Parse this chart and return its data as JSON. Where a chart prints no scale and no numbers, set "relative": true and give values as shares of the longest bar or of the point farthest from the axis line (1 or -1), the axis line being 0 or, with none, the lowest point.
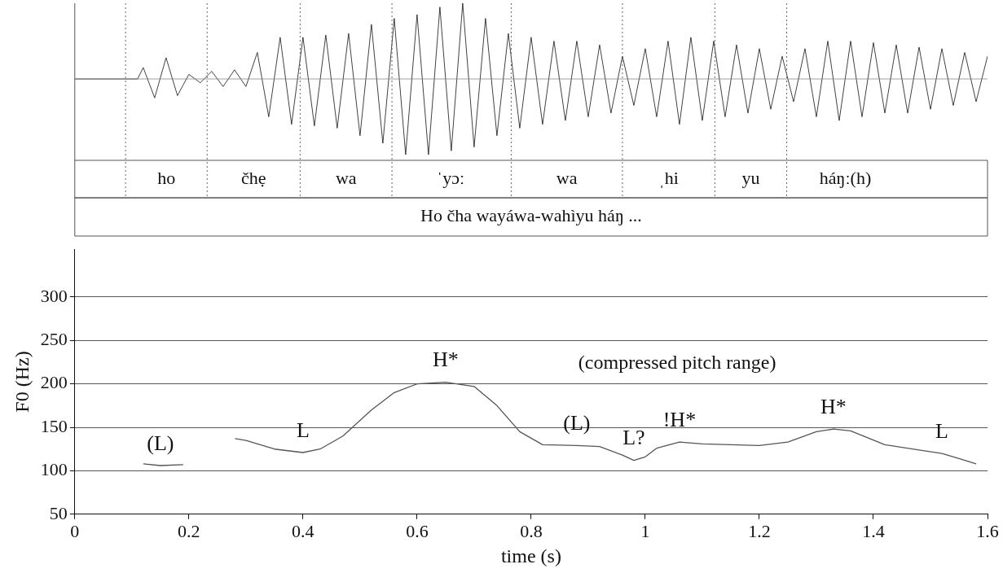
{
  "chart_data": [
    {
      "type": "line",
      "relative": true,
      "tick_labels": false,
      "legend": false,
      "marker": "none",
      "xlim": [
        0,
        1.6
      ],
      "x": [
        0,
        0.11,
        0.12,
        0.14,
        0.16,
        0.18,
        0.2,
        0.22,
        0.24,
        0.26,
        0.28,
        0.3,
        0.32,
        0.34,
        0.36,
        0.38,
        0.4,
        0.42,
        0.44,
        0.46,
        0.48,
        0.5,
        0.52,
        0.54,
        0.56,
        0.58,
        0.6,
        0.62,
        0.64,
        0.66,
        0.68,
        0.7,
        0.72,
        0.74,
        0.76,
        0.78,
        0.8,
        0.82,
        0.84,
        0.86,
        0.88,
        0.9,
        0.92,
        0.94,
        0.96,
        0.98,
        1.0,
        1.02,
        1.04,
        1.06,
        1.08,
        1.1,
        1.12,
        1.14,
        1.16,
        1.18,
        1.2,
        1.22,
        1.24,
        1.26,
        1.28,
        1.3,
        1.32,
        1.34,
        1.36,
        1.38,
        1.4,
        1.42,
        1.44,
        1.46,
        1.48,
        1.5,
        1.52,
        1.54,
        1.56,
        1.58,
        1.6
      ],
      "series": [
        {
          "color": "#111111",
          "values": [
            0,
            0,
            0.15,
            -0.25,
            0.28,
            -0.22,
            0.06,
            -0.05,
            0.1,
            -0.1,
            0.12,
            -0.1,
            0.35,
            -0.5,
            0.55,
            -0.6,
            0.55,
            -0.62,
            0.58,
            -0.65,
            0.6,
            -0.75,
            0.72,
            -0.85,
            0.8,
            -1,
            0.85,
            -1,
            0.95,
            -0.95,
            1,
            -0.9,
            0.8,
            -0.75,
            0.6,
            -0.65,
            0.55,
            -0.6,
            0.5,
            -0.55,
            0.5,
            -0.5,
            0.45,
            -0.45,
            0.3,
            -0.35,
            0.4,
            -0.5,
            0.5,
            -0.6,
            0.55,
            -0.55,
            0.5,
            -0.5,
            0.45,
            -0.45,
            0.4,
            -0.4,
            0.3,
            -0.3,
            0.4,
            -0.5,
            0.5,
            -0.55,
            0.5,
            -0.5,
            0.48,
            -0.45,
            0.45,
            -0.45,
            0.42,
            -0.4,
            0.4,
            -0.35,
            0.35,
            -0.3,
            0.3
          ]
        }
      ],
      "ref_lines": [
        {
          "axis": "x",
          "value": 0.089,
          "label": "ho",
          "line_style": "dotted",
          "color": "#666666"
        },
        {
          "axis": "x",
          "value": 0.232,
          "label": "čhẹ",
          "line_style": "dotted",
          "color": "#666666"
        },
        {
          "axis": "x",
          "value": 0.395,
          "label": "wa",
          "line_style": "dotted",
          "color": "#666666"
        },
        {
          "axis": "x",
          "value": 0.556,
          "label": "ˈyɔː",
          "line_style": "dotted",
          "color": "#666666"
        },
        {
          "axis": "x",
          "value": 0.765,
          "label": "wa",
          "line_style": "dotted",
          "color": "#666666"
        },
        {
          "axis": "x",
          "value": 0.96,
          "label": "ˌhi",
          "line_style": "dotted",
          "color": "#666666"
        },
        {
          "axis": "x",
          "value": 1.122,
          "label": "yu",
          "line_style": "dotted",
          "color": "#666666"
        },
        {
          "axis": "x",
          "value": 1.248,
          "label": "háŋː(h)",
          "line_style": "dotted",
          "color": "#666666"
        }
      ],
      "annotations": [
        "Ho čha wayáwa-wahìyu háŋ ..."
      ]
    },
    {
      "type": "line",
      "xlabel": "time (s)",
      "ylabel": "F0 (Hz)",
      "series": [
        {
          "color": "#555555",
          "x": [
            0.12,
            0.15,
            0.19
          ],
          "values": [
            108,
            106,
            107
          ]
        },
        {
          "color": "#555555",
          "x": [
            0.281,
            0.3,
            0.35,
            0.4,
            0.43,
            0.47,
            0.52,
            0.56,
            0.6,
            0.65,
            0.7,
            0.74,
            0.78,
            0.82,
            0.88,
            0.92,
            0.96,
            0.98,
            1.0,
            1.02,
            1.06,
            1.1,
            1.2,
            1.25,
            1.3,
            1.33,
            1.36,
            1.42,
            1.48,
            1.52,
            1.55,
            1.58
          ],
          "values": [
            137,
            135,
            125,
            121,
            125,
            140,
            170,
            190,
            200,
            202,
            197,
            175,
            145,
            130,
            129,
            128,
            118,
            112,
            116,
            126,
            133,
            131,
            129,
            133,
            145,
            148,
            146,
            130,
            124,
            120,
            114,
            108
          ]
        }
      ],
      "xlim": [
        0,
        1.6
      ],
      "xticks": [
        0,
        0.2,
        0.4,
        0.6,
        0.8,
        1,
        1.2,
        1.4,
        1.6
      ],
      "ylim": [
        50,
        355
      ],
      "yticks": [
        50,
        100,
        150,
        200,
        250,
        300
      ],
      "grid": "y",
      "legend": false,
      "marker": "none",
      "line_style": "solid",
      "annotations": [
        "(compressed pitch range)",
        {
          "text": "(L)",
          "x": 0.15,
          "y": 106
        },
        {
          "text": "L",
          "x": 0.4,
          "y": 121
        },
        {
          "text": "H*",
          "x": 0.65,
          "y": 202
        },
        {
          "text": "(L)",
          "x": 0.88,
          "y": 129
        },
        {
          "text": "L?",
          "x": 0.98,
          "y": 112
        },
        {
          "text": "!H*",
          "x": 1.06,
          "y": 133
        },
        {
          "text": "H*",
          "x": 1.33,
          "y": 148
        },
        {
          "text": "L",
          "x": 1.52,
          "y": 120
        }
      ]
    }
  ]
}
